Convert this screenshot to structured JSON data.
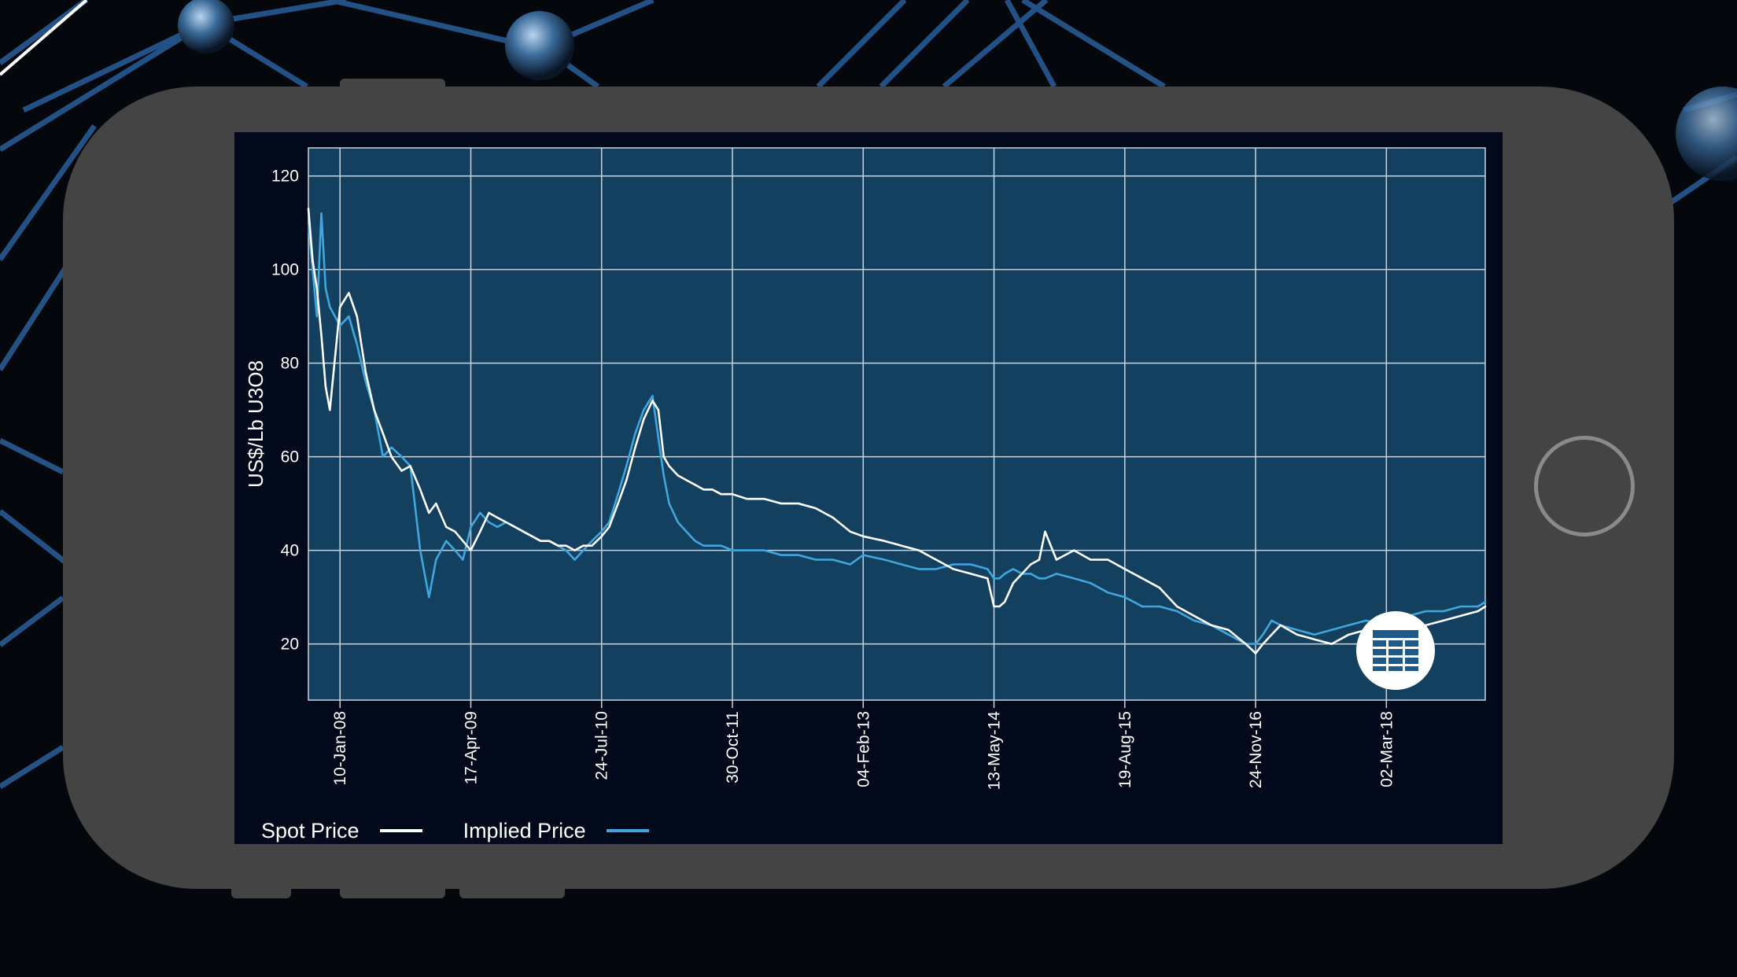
{
  "colors": {
    "plot_bg": "#144060",
    "grid": "#c8d4de",
    "axis_text": "#ffffff",
    "spot": "#ffffff",
    "implied": "#41a6dd",
    "button_icon": "#1f5a86"
  },
  "legend": {
    "spot_label": "Spot Price",
    "implied_label": "Implied Price"
  },
  "table_button": {
    "icon": "table-grid-icon"
  },
  "home_button": {
    "icon": "circle-home-icon"
  },
  "chart_data": {
    "type": "line",
    "title": "",
    "xlabel": "",
    "ylabel": "US$/Lb U3O8",
    "ylim": [
      8,
      126
    ],
    "yticks": [
      20,
      40,
      60,
      80,
      100,
      120
    ],
    "xlim": [
      "2007-09-20",
      "2019-02-15"
    ],
    "xticks": [
      "2008-01-10",
      "2009-04-17",
      "2010-07-24",
      "2011-10-30",
      "2013-02-04",
      "2014-05-13",
      "2015-08-19",
      "2016-11-24",
      "2018-03-02"
    ],
    "xtick_labels": [
      "10-Jan-08",
      "17-Apr-09",
      "24-Jul-10",
      "30-Oct-11",
      "04-Feb-13",
      "13-May-14",
      "19-Aug-15",
      "24-Nov-16",
      "02-Mar-18"
    ],
    "grid": true,
    "legend_position": "bottom-left",
    "series": [
      {
        "name": "Spot Price",
        "color": "#ffffff",
        "x": [
          "2007-09-20",
          "2007-10-05",
          "2007-10-20",
          "2007-11-05",
          "2007-11-20",
          "2007-12-05",
          "2008-01-10",
          "2008-02-10",
          "2008-03-10",
          "2008-04-10",
          "2008-05-10",
          "2008-06-10",
          "2008-07-10",
          "2008-08-15",
          "2008-09-15",
          "2008-10-20",
          "2008-11-20",
          "2008-12-15",
          "2009-01-20",
          "2009-02-20",
          "2009-03-20",
          "2009-04-17",
          "2009-05-20",
          "2009-06-20",
          "2009-07-20",
          "2009-08-20",
          "2009-09-20",
          "2009-10-20",
          "2009-11-20",
          "2009-12-20",
          "2010-01-20",
          "2010-02-20",
          "2010-03-20",
          "2010-04-20",
          "2010-05-20",
          "2010-06-20",
          "2010-07-24",
          "2010-08-20",
          "2010-09-20",
          "2010-10-20",
          "2010-11-20",
          "2010-12-20",
          "2011-01-20",
          "2011-02-10",
          "2011-03-01",
          "2011-03-20",
          "2011-04-20",
          "2011-05-20",
          "2011-06-20",
          "2011-07-20",
          "2011-08-20",
          "2011-09-20",
          "2011-10-30",
          "2011-12-20",
          "2012-02-20",
          "2012-04-20",
          "2012-06-20",
          "2012-08-20",
          "2012-10-20",
          "2012-12-20",
          "2013-02-04",
          "2013-04-20",
          "2013-06-20",
          "2013-08-20",
          "2013-10-20",
          "2013-12-20",
          "2014-02-20",
          "2014-04-20",
          "2014-05-13",
          "2014-06-01",
          "2014-06-20",
          "2014-07-20",
          "2014-08-20",
          "2014-09-20",
          "2014-10-20",
          "2014-11-10",
          "2014-12-20",
          "2015-02-20",
          "2015-04-20",
          "2015-06-20",
          "2015-08-19",
          "2015-10-20",
          "2015-12-20",
          "2016-02-20",
          "2016-04-20",
          "2016-06-20",
          "2016-08-20",
          "2016-10-20",
          "2016-11-24",
          "2016-12-20",
          "2017-01-20",
          "2017-02-20",
          "2017-04-20",
          "2017-06-20",
          "2017-08-20",
          "2017-10-20",
          "2017-12-20",
          "2018-02-20",
          "2018-03-02",
          "2018-05-20",
          "2018-07-20",
          "2018-09-20",
          "2018-11-20",
          "2019-01-20",
          "2019-02-15"
        ],
        "values": [
          113,
          102,
          96,
          86,
          75,
          70,
          92,
          95,
          90,
          78,
          70,
          65,
          60,
          57,
          58,
          53,
          48,
          50,
          45,
          44,
          42,
          40,
          44,
          48,
          47,
          46,
          45,
          44,
          43,
          42,
          42,
          41,
          41,
          40,
          41,
          41,
          43,
          45,
          50,
          55,
          62,
          68,
          72,
          70,
          60,
          58,
          56,
          55,
          54,
          53,
          53,
          52,
          52,
          51,
          51,
          50,
          50,
          49,
          47,
          44,
          43,
          42,
          41,
          40,
          38,
          36,
          35,
          34,
          28,
          28,
          29,
          33,
          35,
          37,
          38,
          44,
          38,
          40,
          38,
          38,
          36,
          34,
          32,
          28,
          26,
          24,
          23,
          20,
          18,
          20,
          22,
          24,
          22,
          21,
          20,
          22,
          23,
          24,
          22,
          23,
          24,
          25,
          26,
          27,
          28
        ]
      },
      {
        "name": "Implied Price",
        "color": "#41a6dd",
        "x": [
          "2007-09-20",
          "2007-10-05",
          "2007-10-20",
          "2007-11-05",
          "2007-11-20",
          "2007-12-05",
          "2008-01-10",
          "2008-02-10",
          "2008-03-10",
          "2008-04-10",
          "2008-05-10",
          "2008-06-10",
          "2008-07-10",
          "2008-08-15",
          "2008-09-15",
          "2008-10-20",
          "2008-11-20",
          "2008-12-15",
          "2009-01-20",
          "2009-02-20",
          "2009-03-20",
          "2009-04-17",
          "2009-05-20",
          "2009-06-20",
          "2009-07-20",
          "2009-08-20",
          "2009-09-20",
          "2009-10-20",
          "2009-11-20",
          "2009-12-20",
          "2010-01-20",
          "2010-02-20",
          "2010-03-20",
          "2010-04-20",
          "2010-05-20",
          "2010-06-20",
          "2010-07-24",
          "2010-08-20",
          "2010-09-20",
          "2010-10-20",
          "2010-11-20",
          "2010-12-20",
          "2011-01-20",
          "2011-02-10",
          "2011-03-01",
          "2011-03-20",
          "2011-04-20",
          "2011-05-20",
          "2011-06-20",
          "2011-07-20",
          "2011-08-20",
          "2011-09-20",
          "2011-10-30",
          "2011-12-20",
          "2012-02-20",
          "2012-04-20",
          "2012-06-20",
          "2012-08-20",
          "2012-10-20",
          "2012-12-20",
          "2013-02-04",
          "2013-04-20",
          "2013-06-20",
          "2013-08-20",
          "2013-10-20",
          "2013-12-20",
          "2014-02-20",
          "2014-04-20",
          "2014-05-13",
          "2014-06-01",
          "2014-06-20",
          "2014-07-20",
          "2014-08-20",
          "2014-09-20",
          "2014-10-20",
          "2014-11-10",
          "2014-12-20",
          "2015-02-20",
          "2015-04-20",
          "2015-06-20",
          "2015-08-19",
          "2015-10-20",
          "2015-12-20",
          "2016-02-20",
          "2016-04-20",
          "2016-06-20",
          "2016-08-20",
          "2016-10-20",
          "2016-11-24",
          "2016-12-20",
          "2017-01-20",
          "2017-02-20",
          "2017-04-20",
          "2017-06-20",
          "2017-08-20",
          "2017-10-20",
          "2017-12-20",
          "2018-02-20",
          "2018-03-02",
          "2018-05-20",
          "2018-07-20",
          "2018-09-20",
          "2018-11-20",
          "2019-01-20",
          "2019-02-15"
        ],
        "values": [
          110,
          100,
          90,
          112,
          96,
          92,
          88,
          90,
          84,
          76,
          70,
          60,
          62,
          60,
          58,
          40,
          30,
          38,
          42,
          40,
          38,
          45,
          48,
          46,
          45,
          46,
          45,
          44,
          43,
          42,
          42,
          41,
          40,
          38,
          40,
          42,
          44,
          46,
          52,
          58,
          65,
          70,
          73,
          64,
          56,
          50,
          46,
          44,
          42,
          41,
          41,
          41,
          40,
          40,
          40,
          39,
          39,
          38,
          38,
          37,
          39,
          38,
          37,
          36,
          36,
          37,
          37,
          36,
          34,
          34,
          35,
          36,
          35,
          35,
          34,
          34,
          35,
          34,
          33,
          31,
          30,
          28,
          28,
          27,
          25,
          24,
          22,
          20,
          20,
          22,
          25,
          24,
          23,
          22,
          23,
          24,
          25,
          24,
          25,
          26,
          27,
          27,
          28,
          28,
          29
        ]
      }
    ]
  }
}
